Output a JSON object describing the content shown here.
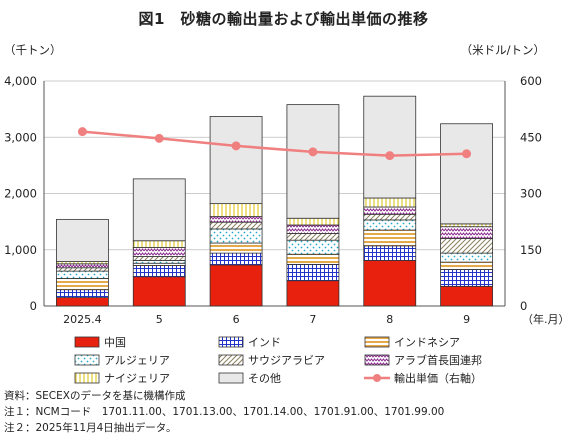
{
  "title": "図1　砂糖の輸出量および輸出単価の推移",
  "left_unit": "（千トン）",
  "right_unit": "（米ドル/トン）",
  "x_unit": "（年.月）",
  "notes": [
    "資料：SECEXのデータを基に機構作成",
    "注１：NCMコード　1701.11.00、1701.13.00、1701.14.00、1701.91.00、1701.99.00",
    "注２：2025年11月4日抽出データ。"
  ],
  "colors": {
    "中国": "#e8210f",
    "インド": "#2233cc",
    "インドネシア": "#e6a94a",
    "アルジェリア": "#26a9c9",
    "サウジアラビア": "#8a8060",
    "アラブ首長国連邦": "#8b2a8f",
    "ナイジェリア": "#e8d24a",
    "その他": "#e8e8e8",
    "輸出単価": "#f08080"
  },
  "chart_data": {
    "type": "bar",
    "stacked": true,
    "categories": [
      "2025.4",
      "5",
      "6",
      "7",
      "8",
      "9"
    ],
    "ylim_left": [
      0,
      4000
    ],
    "yticks_left": [
      "0",
      "1,000",
      "2,000",
      "3,000",
      "4,000"
    ],
    "ylim_right": [
      0,
      600
    ],
    "yticks_right": [
      "0",
      "150",
      "300",
      "450",
      "600"
    ],
    "legend_placement": "bottom",
    "series": [
      {
        "name": "中国",
        "values": [
          150,
          520,
          730,
          450,
          810,
          350
        ]
      },
      {
        "name": "インド",
        "values": [
          140,
          200,
          210,
          290,
          260,
          300
        ]
      },
      {
        "name": "インドネシア",
        "values": [
          200,
          40,
          180,
          180,
          280,
          130
        ]
      },
      {
        "name": "アルジェリア",
        "values": [
          130,
          50,
          250,
          250,
          180,
          160
        ]
      },
      {
        "name": "サウジアラビア",
        "values": [
          60,
          70,
          120,
          120,
          100,
          260
        ]
      },
      {
        "name": "アラブ首長国連邦",
        "values": [
          70,
          160,
          100,
          150,
          130,
          210
        ]
      },
      {
        "name": "ナイジェリア",
        "values": [
          40,
          120,
          230,
          120,
          160,
          50
        ]
      },
      {
        "name": "その他",
        "values": [
          750,
          1100,
          1550,
          2020,
          1810,
          1780
        ]
      },
      {
        "name": "輸出単価（右軸）",
        "axis": "right",
        "type": "line",
        "values": [
          465,
          447,
          427,
          411,
          401,
          406
        ]
      }
    ]
  }
}
